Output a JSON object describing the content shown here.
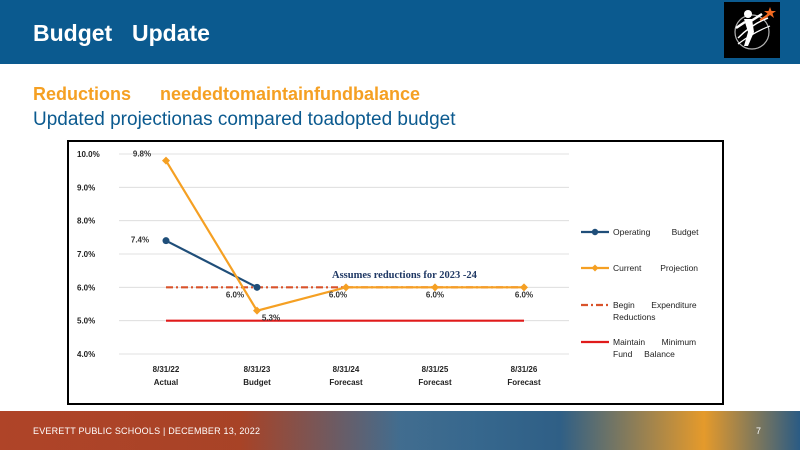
{
  "header": {
    "title_word1": "Budget",
    "title_word2": "Update"
  },
  "subtitle": {
    "line1_word1": "Reductions",
    "line1_word2": "neededtomaintainfundbalance",
    "line2": "Updated projectionas compared toadopted budget"
  },
  "chart_data": {
    "type": "line",
    "categories": [
      [
        "8/31/22",
        "Actual"
      ],
      [
        "8/31/23",
        "Budget"
      ],
      [
        "8/31/24",
        "Forecast"
      ],
      [
        "8/31/25",
        "Forecast"
      ],
      [
        "8/31/26",
        "Forecast"
      ]
    ],
    "ylim": [
      4.0,
      10.0
    ],
    "yticks": [
      "4.0%",
      "5.0%",
      "6.0%",
      "7.0%",
      "8.0%",
      "9.0%",
      "10.0%"
    ],
    "grid": true,
    "legend_position": "right",
    "annotation": "Assumes reductions  for 2023 -24",
    "series": [
      {
        "name": "Operating Budget",
        "color": "#1f4e79",
        "marker": "circle",
        "style": "solid",
        "x": [
          0,
          1
        ],
        "values": [
          7.4,
          6.0
        ],
        "labels": [
          "7.4%",
          "6.0%"
        ]
      },
      {
        "name": "Current Projection",
        "color": "#f5a023",
        "marker": "diamond",
        "style": "solid",
        "x": [
          0,
          1,
          2,
          3,
          4
        ],
        "values": [
          9.8,
          5.3,
          6.0,
          6.0,
          6.0
        ],
        "labels": [
          "9.8%",
          "5.3%",
          "6.0%",
          "6.0%",
          "6.0%"
        ]
      },
      {
        "name": "Begin Expenditure Reductions",
        "color": "#d9532b",
        "marker": "none",
        "style": "dashdot",
        "x": [
          0,
          4
        ],
        "values": [
          6.0,
          6.0
        ],
        "labels": []
      },
      {
        "name": "Maintain Minimum Fund Balance",
        "color": "#e01b1b",
        "marker": "none",
        "style": "solid",
        "x": [
          0,
          4
        ],
        "values": [
          5.0,
          5.0
        ],
        "labels": []
      }
    ],
    "legend": [
      {
        "line1": "Operating         Budget",
        "line2": ""
      },
      {
        "line1": "Current        Projection",
        "line2": ""
      },
      {
        "line1": "Begin       Expenditure",
        "line2": "Reductions"
      },
      {
        "line1": "Maintain       Minimum",
        "line2": "Fund     Balance"
      }
    ]
  },
  "footer": {
    "text": "EVERETT PUBLIC SCHOOLS  |  DECEMBER 13, 2022",
    "page": "7"
  },
  "colors": {
    "header_blue": "#0b5a8f",
    "accent_orange": "#f5a023",
    "navy": "#1f4e79"
  },
  "logo": {
    "icon": "stars-figure-icon"
  }
}
